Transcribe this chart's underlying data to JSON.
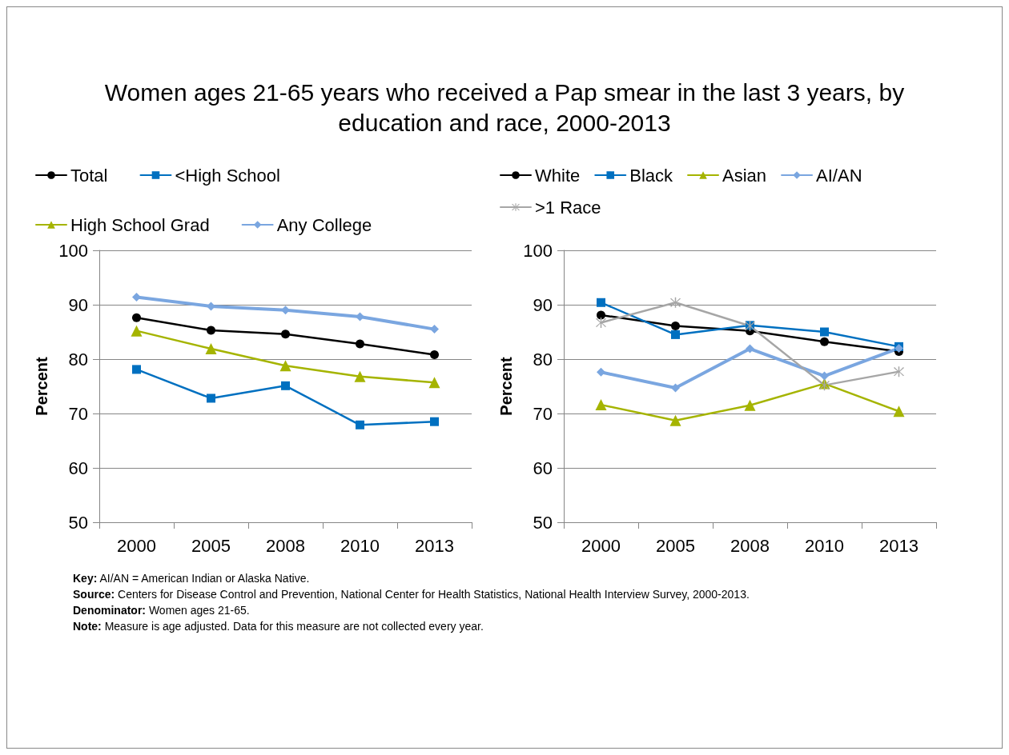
{
  "chart_data": [
    {
      "type": "line",
      "title": "Women ages 21-65 years who received a Pap smear in the last 3 years, by education and race, 2000-2013",
      "ylabel": "Percent",
      "categories": [
        "2000",
        "2005",
        "2008",
        "2010",
        "2013"
      ],
      "ylim": [
        50,
        100
      ],
      "yticks": [
        50,
        60,
        70,
        80,
        90,
        100
      ],
      "grid": "y",
      "legend": "top",
      "series": [
        {
          "name": "Total",
          "color": "#000000",
          "marker": "circle",
          "values": [
            87.6,
            85.3,
            84.6,
            82.8,
            80.8
          ]
        },
        {
          "name": "<High School",
          "color": "#0070c0",
          "marker": "square",
          "values": [
            78.1,
            72.8,
            75.1,
            67.9,
            68.5
          ]
        },
        {
          "name": "High School Grad",
          "color": "#a5b400",
          "marker": "triangle",
          "values": [
            85.2,
            81.9,
            78.8,
            76.8,
            75.7
          ]
        },
        {
          "name": "Any College",
          "color": "#7aa6e0",
          "marker": "diamond",
          "values": [
            91.4,
            89.7,
            89.0,
            87.8,
            85.5
          ]
        }
      ],
      "annotations": [
        "Key: AI/AN = American Indian or Alaska Native.",
        "Source: Centers for Disease Control and Prevention, National Center for Health Statistics, National Health Interview Survey, 2000-2013.",
        "Denominator: Women ages 21-65.",
        "Note: Measure is age adjusted. Data for this measure are not collected every year."
      ]
    },
    {
      "type": "line",
      "ylabel": "Percent",
      "categories": [
        "2000",
        "2005",
        "2008",
        "2010",
        "2013"
      ],
      "ylim": [
        50,
        100
      ],
      "yticks": [
        50,
        60,
        70,
        80,
        90,
        100
      ],
      "grid": "y",
      "legend": "top",
      "series": [
        {
          "name": "White",
          "color": "#000000",
          "marker": "circle",
          "values": [
            88.1,
            86.1,
            85.2,
            83.2,
            81.4
          ]
        },
        {
          "name": "Black",
          "color": "#0070c0",
          "marker": "square",
          "values": [
            90.4,
            84.5,
            86.2,
            85.0,
            82.3
          ]
        },
        {
          "name": "Asian",
          "color": "#a5b400",
          "marker": "triangle",
          "values": [
            71.6,
            68.7,
            71.5,
            75.5,
            70.4
          ]
        },
        {
          "name": "AI/AN",
          "color": "#7aa6e0",
          "marker": "diamond",
          "values": [
            77.6,
            74.7,
            81.9,
            76.9,
            82.0
          ]
        },
        {
          "name": ">1 Race",
          "color": "#a6a6a6",
          "marker": "cross",
          "values": [
            86.7,
            90.4,
            86.1,
            75.2,
            77.7
          ]
        }
      ]
    }
  ]
}
